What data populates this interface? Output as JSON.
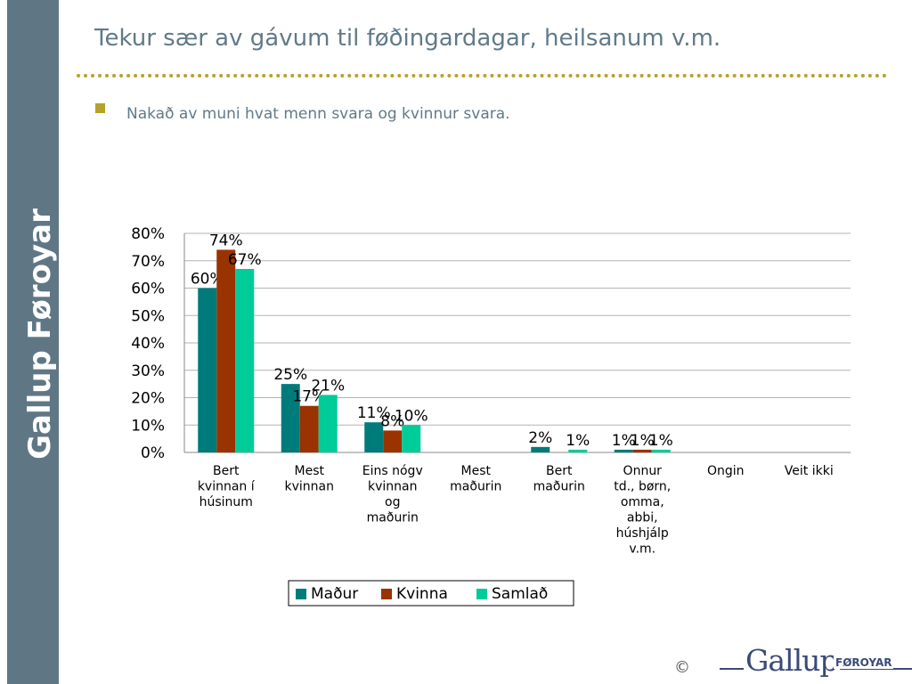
{
  "sidebar": {
    "label": "Gallup Føroyar"
  },
  "slide": {
    "title": "Tekur sær av gávum til føðingardagar, heilsanum v.m.",
    "bullet": "Nakað av muni hvat menn svara og kvinnur svara."
  },
  "footer": {
    "copyright": "©",
    "logo_main": "Gallup",
    "logo_sub": "FØROYAR"
  },
  "colors": {
    "sidebar": "#5f7785",
    "accent": "#b8a12a",
    "title": "#607a89",
    "logo": "#3a4a78"
  },
  "chart_data": {
    "type": "bar",
    "categories": [
      [
        "Bert",
        "kvinnan í",
        "húsinum"
      ],
      [
        "Mest",
        "kvinnan"
      ],
      [
        "Eins nógv",
        "kvinnan",
        "og",
        "maðurin"
      ],
      [
        "Mest",
        "maðurin"
      ],
      [
        "Bert",
        "maðurin"
      ],
      [
        "Onnur",
        "td., børn,",
        "omma,",
        "abbi,",
        "húshjálp",
        "v.m."
      ],
      [
        "Ongin"
      ],
      [
        "Veit ikki"
      ]
    ],
    "series": [
      {
        "name": "Maður",
        "color": "#007b7b",
        "values": [
          60,
          25,
          11,
          null,
          2,
          1,
          null,
          null
        ],
        "labels": [
          "60%",
          "25%",
          "11%",
          "",
          "2%",
          "1%",
          "",
          ""
        ]
      },
      {
        "name": "Kvinna",
        "color": "#993300",
        "values": [
          74,
          17,
          8,
          null,
          null,
          1,
          null,
          null
        ],
        "labels": [
          "74%",
          "17%",
          "8%",
          "",
          "",
          "1%",
          "",
          ""
        ]
      },
      {
        "name": "Samlað",
        "color": "#00cc99",
        "values": [
          67,
          21,
          10,
          null,
          1,
          1,
          null,
          null
        ],
        "labels": [
          "67%",
          "21%",
          "10%",
          "",
          "1%",
          "1%",
          "",
          ""
        ]
      }
    ],
    "yticks": [
      "0%",
      "10%",
      "20%",
      "30%",
      "40%",
      "50%",
      "60%",
      "70%",
      "80%"
    ],
    "ylim": [
      0,
      80
    ],
    "grid": true,
    "legend": "bottom"
  }
}
